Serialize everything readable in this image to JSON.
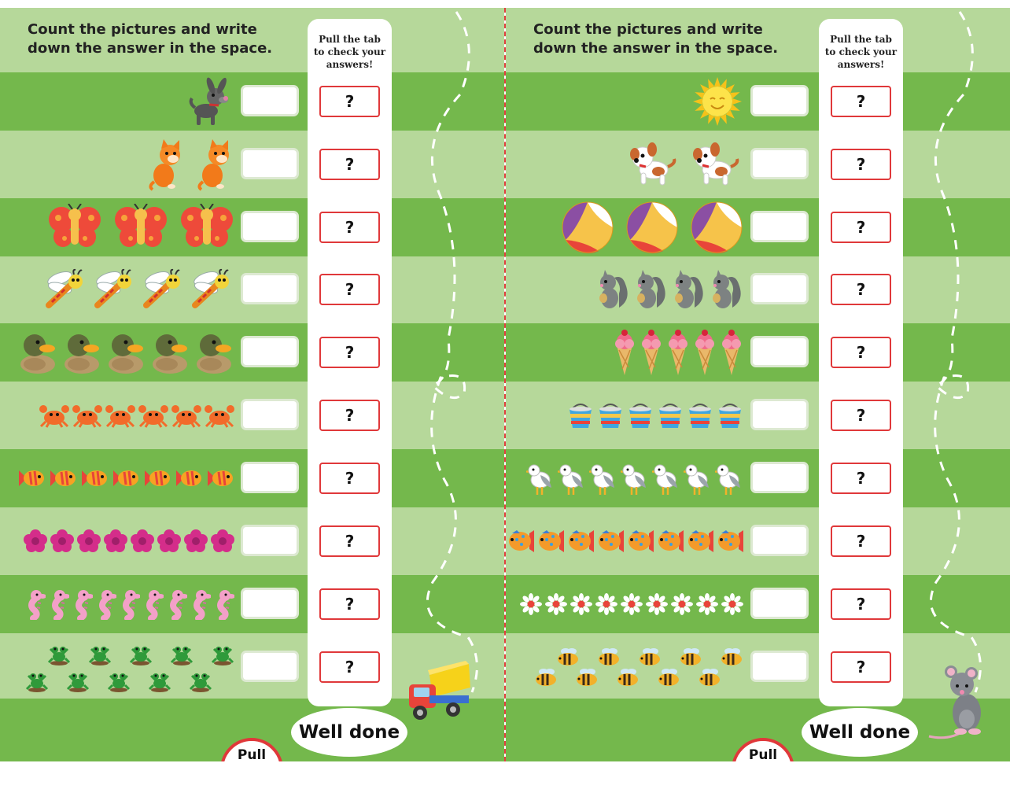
{
  "pages": [
    {
      "id": "left",
      "instructions": "Count the pictures and write down the answer in the space.",
      "strip_title": "Pull the tab to check your answers!",
      "rows": [
        {
          "picture": "dog",
          "count": 1,
          "answer_mark": "?"
        },
        {
          "picture": "cat",
          "count": 2,
          "answer_mark": "?"
        },
        {
          "picture": "butterfly",
          "count": 3,
          "answer_mark": "?"
        },
        {
          "picture": "dragonfly",
          "count": 4,
          "answer_mark": "?"
        },
        {
          "picture": "duck",
          "count": 5,
          "answer_mark": "?"
        },
        {
          "picture": "crab",
          "count": 6,
          "answer_mark": "?"
        },
        {
          "picture": "fish",
          "count": 7,
          "answer_mark": "?"
        },
        {
          "picture": "flower",
          "count": 8,
          "answer_mark": "?"
        },
        {
          "picture": "seahorse",
          "count": 9,
          "answer_mark": "?"
        },
        {
          "picture": "frog",
          "count": 10,
          "answer_mark": "?"
        }
      ],
      "well_done": "Well done",
      "pull_label": "Pull",
      "decoration": "toy-truck"
    },
    {
      "id": "right",
      "instructions": "Count the pictures and write down the answer in the space.",
      "strip_title": "Pull the tab to check your answers!",
      "rows": [
        {
          "picture": "sun",
          "count": 1,
          "answer_mark": "?"
        },
        {
          "picture": "puppy",
          "count": 2,
          "answer_mark": "?"
        },
        {
          "picture": "beach-ball",
          "count": 3,
          "answer_mark": "?"
        },
        {
          "picture": "squirrel",
          "count": 4,
          "answer_mark": "?"
        },
        {
          "picture": "ice-cream",
          "count": 5,
          "answer_mark": "?"
        },
        {
          "picture": "bucket",
          "count": 6,
          "answer_mark": "?"
        },
        {
          "picture": "seagull",
          "count": 7,
          "answer_mark": "?"
        },
        {
          "picture": "tropical-fish",
          "count": 8,
          "answer_mark": "?"
        },
        {
          "picture": "daisy",
          "count": 9,
          "answer_mark": "?"
        },
        {
          "picture": "bee",
          "count": 10,
          "answer_mark": "?"
        }
      ],
      "well_done": "Well done",
      "pull_label": "Pull",
      "decoration": "mouse"
    }
  ],
  "colors": {
    "dark_green": "#74b84c",
    "light_green": "#b6d89a",
    "red_outline": "#e0383a",
    "white": "#ffffff"
  }
}
